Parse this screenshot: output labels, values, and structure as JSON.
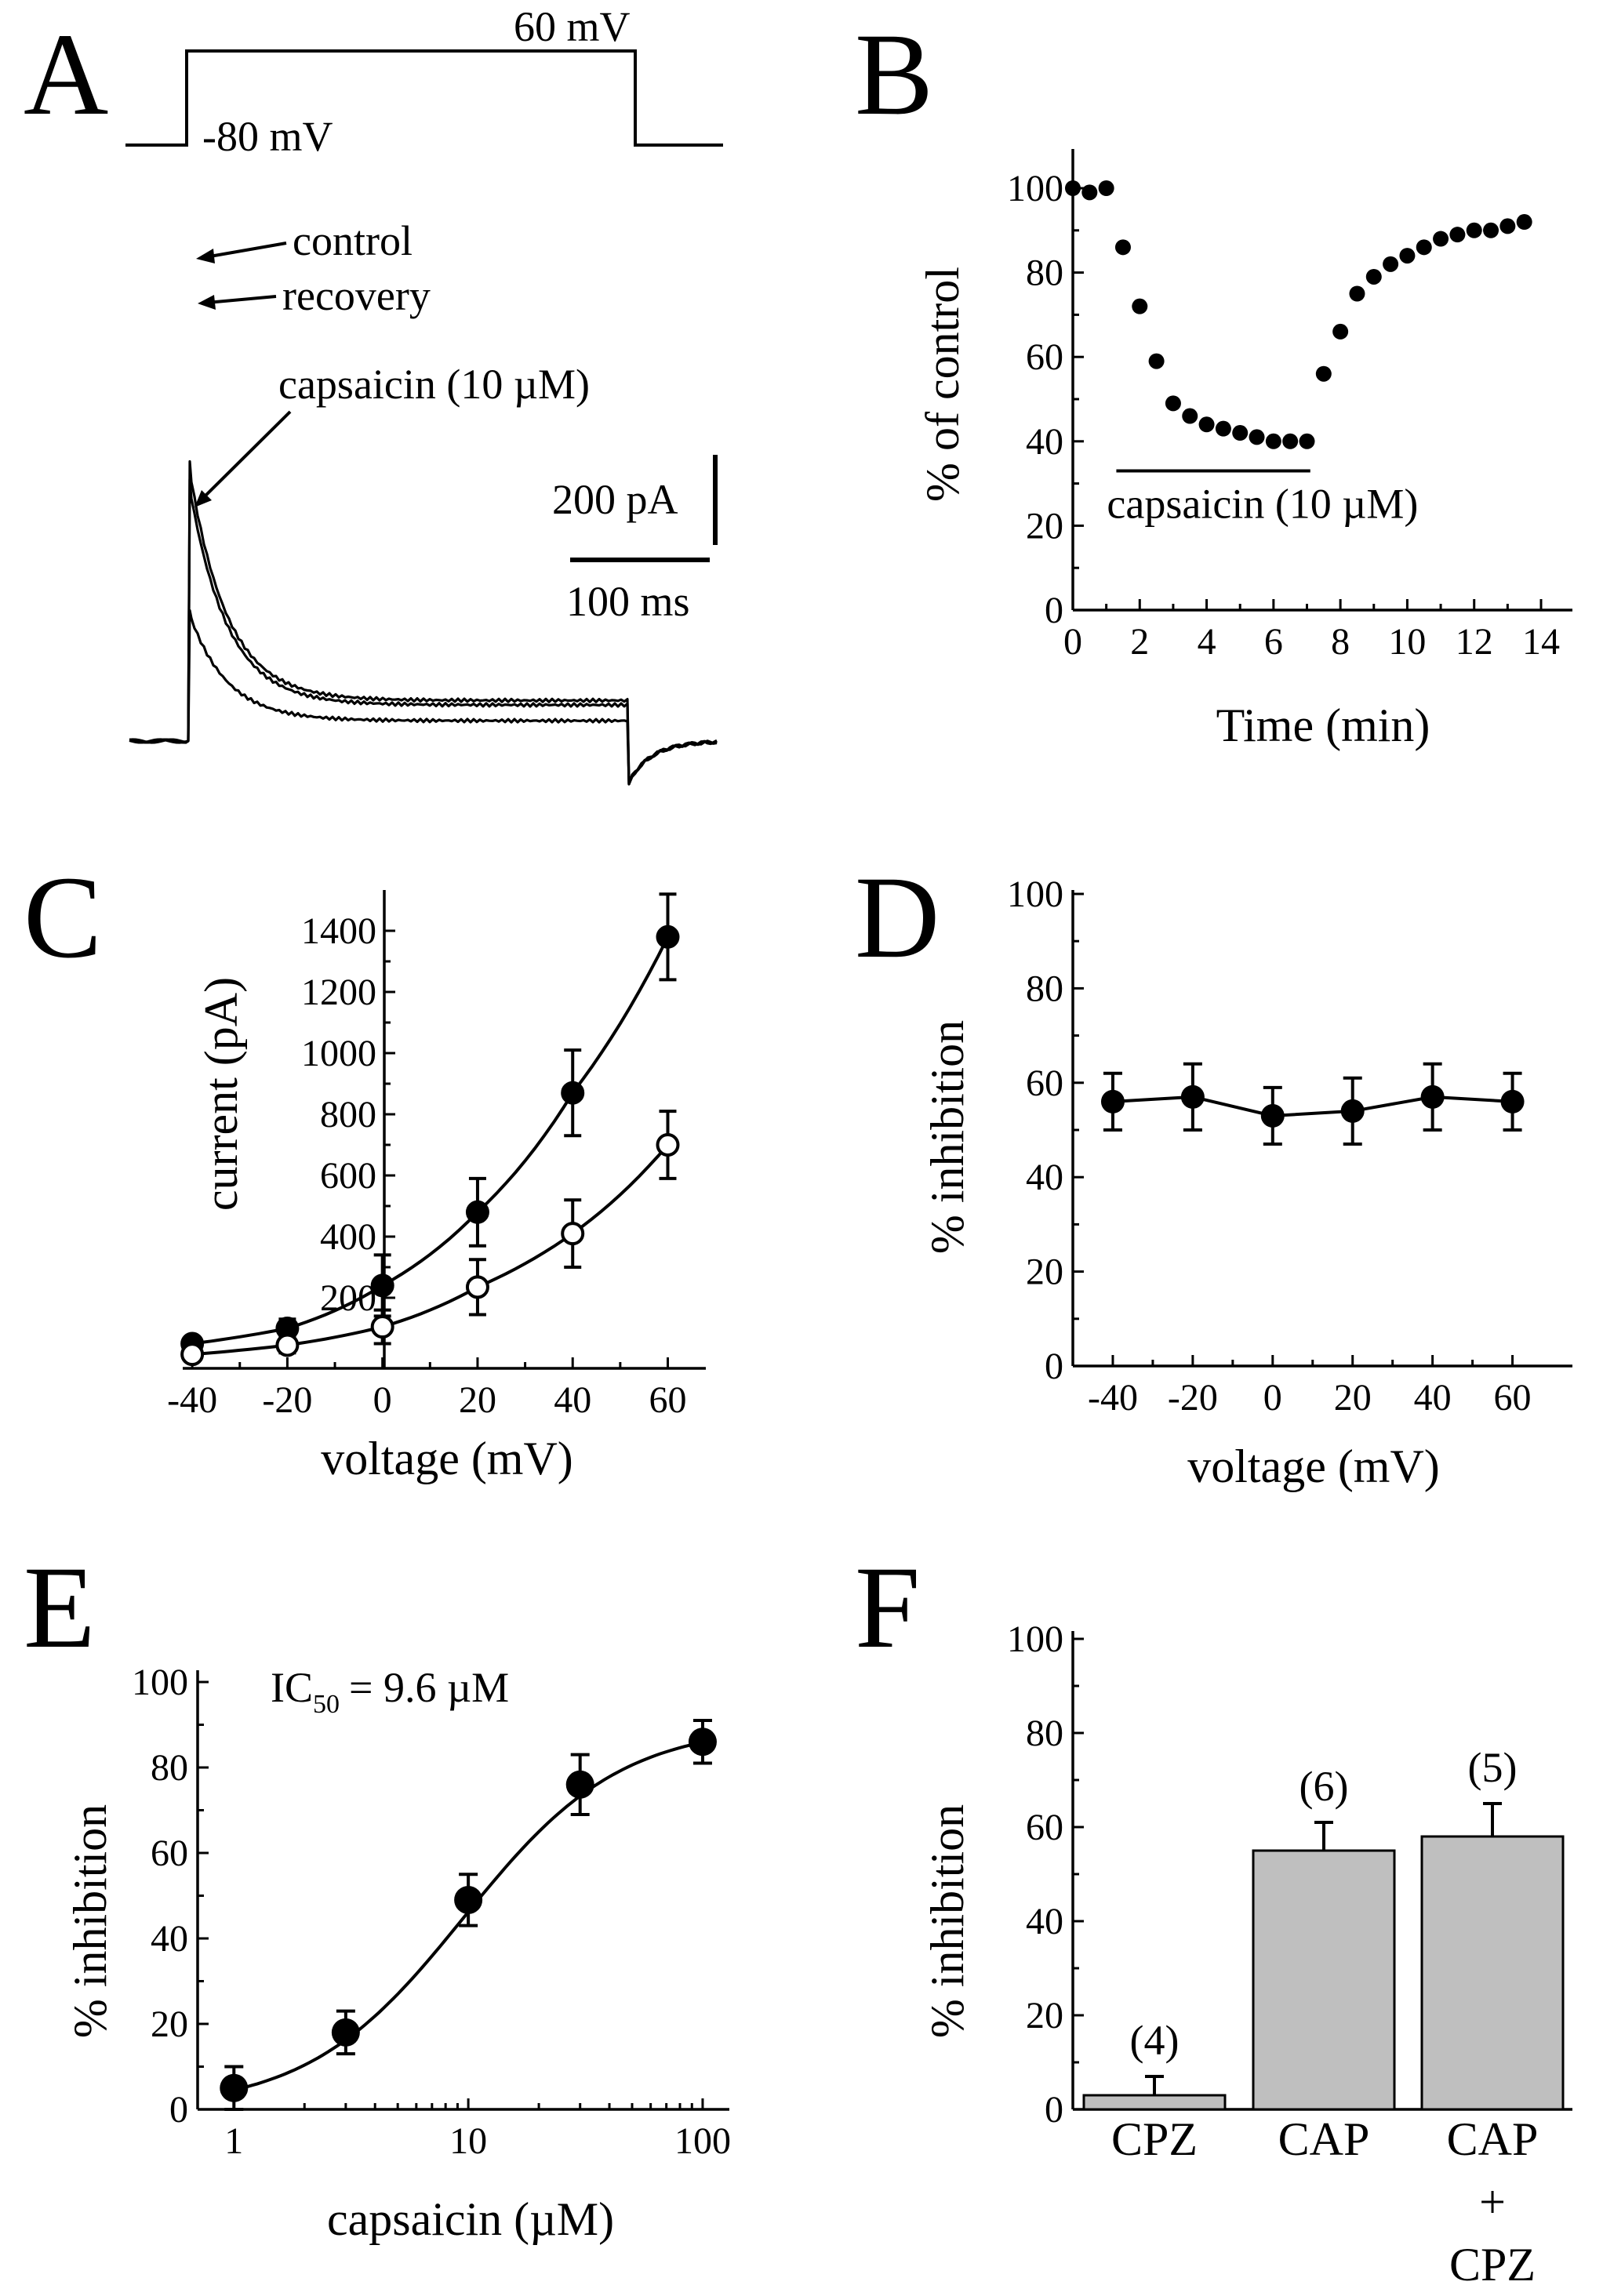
{
  "figure": {
    "bottom_band_color": "#ffffff",
    "ink_color": "#000000",
    "bar_fill": "#bfbfbf"
  },
  "chart_data": [
    {
      "panel": "A",
      "type": "line",
      "title": "",
      "protocol": {
        "holding_label": "-80 mV",
        "step_label": "60 mV"
      },
      "traces": [
        {
          "name": "control",
          "label": "control",
          "peak_pA": 620,
          "steady_pA": 90
        },
        {
          "name": "recovery",
          "label": "recovery",
          "peak_pA": 580,
          "steady_pA": 80
        },
        {
          "name": "capsaicin",
          "label": "capsaicin (10 µM)",
          "peak_pA": 290,
          "steady_pA": 45
        }
      ],
      "scale_bars": {
        "current_label": "200 pA",
        "time_label": "100 ms"
      }
    },
    {
      "panel": "B",
      "type": "scatter",
      "xlabel": "Time (min)",
      "ylabel": "% of control",
      "xlim": [
        0,
        14
      ],
      "ylim": [
        0,
        100
      ],
      "xticks": [
        "0",
        "2",
        "4",
        "6",
        "8",
        "10",
        "12",
        "14"
      ],
      "yticks": [
        "0",
        "20",
        "40",
        "60",
        "80",
        "100"
      ],
      "series": [
        {
          "name": "current",
          "x": [
            0,
            0.5,
            1.0,
            1.5,
            2.0,
            2.5,
            3.0,
            3.5,
            4.0,
            4.5,
            5.0,
            5.5,
            6.0,
            6.5,
            7.0,
            7.5,
            8.0,
            8.5,
            9.0,
            9.5,
            10.0,
            10.5,
            11.0,
            11.5,
            12.0,
            12.5,
            13.0,
            13.5
          ],
          "y": [
            100,
            99,
            100,
            86,
            72,
            59,
            49,
            46,
            44,
            43,
            42,
            41,
            40,
            40,
            40,
            56,
            66,
            75,
            79,
            82,
            84,
            86,
            88,
            89,
            90,
            90,
            91,
            92
          ]
        }
      ],
      "annotation": {
        "label": "capsaicin (10 µM)",
        "x_start": 1.3,
        "x_end": 7.1,
        "y": 33
      }
    },
    {
      "panel": "C",
      "type": "line",
      "xlabel": "voltage (mV)",
      "ylabel": "current (pA)",
      "xlim": [
        -42,
        68
      ],
      "ylim": [
        -10,
        1500
      ],
      "xticks": [
        "-40",
        "-20",
        "0",
        "20",
        "40",
        "60"
      ],
      "yticks": [
        "200",
        "400",
        "600",
        "800",
        "1000",
        "1200",
        "1400"
      ],
      "series": [
        {
          "name": "control",
          "marker": "filled",
          "x": [
            -40,
            -20,
            0,
            20,
            40,
            60
          ],
          "values": [
            50,
            100,
            240,
            480,
            870,
            1380
          ],
          "err": [
            20,
            30,
            100,
            110,
            140,
            140
          ]
        },
        {
          "name": "capsaicin",
          "marker": "open",
          "x": [
            -40,
            -20,
            0,
            20,
            40,
            60
          ],
          "values": [
            15,
            45,
            105,
            235,
            410,
            700
          ],
          "err": [
            15,
            25,
            55,
            90,
            110,
            110
          ]
        }
      ]
    },
    {
      "panel": "D",
      "type": "line",
      "xlabel": "voltage (mV)",
      "ylabel": "% inhibition",
      "xlim": [
        -50,
        75
      ],
      "ylim": [
        0,
        100
      ],
      "xticks": [
        "-40",
        "-20",
        "0",
        "20",
        "40",
        "60"
      ],
      "yticks": [
        "0",
        "20",
        "40",
        "60",
        "80",
        "100"
      ],
      "series": [
        {
          "name": "inhibition",
          "x": [
            -40,
            -20,
            0,
            20,
            40,
            60
          ],
          "values": [
            56,
            57,
            53,
            54,
            57,
            56
          ],
          "err": [
            6,
            7,
            6,
            7,
            7,
            6
          ]
        }
      ]
    },
    {
      "panel": "E",
      "type": "scatter",
      "xlabel": "capsaicin (µM)",
      "ylabel": "% inhibition",
      "xscale": "log",
      "xlim": [
        0.7,
        130
      ],
      "ylim": [
        0,
        110
      ],
      "xticks": [
        "1",
        "10",
        "100"
      ],
      "yticks": [
        "0",
        "20",
        "40",
        "60",
        "80",
        "100"
      ],
      "ic50_prefix": "IC",
      "ic50_sub": "50",
      "ic50_value": "=  9.6 µM",
      "ic50": 9.6,
      "series": [
        {
          "name": "inhibition",
          "x": [
            1,
            3,
            10,
            30,
            100
          ],
          "values": [
            5,
            18,
            49,
            76,
            86
          ],
          "err": [
            5,
            5,
            6,
            7,
            5
          ]
        }
      ],
      "fit": {
        "ic50": 9.6,
        "hill": 1.3,
        "max": 90
      }
    },
    {
      "panel": "F",
      "type": "bar",
      "xlabel": "",
      "ylabel": "% inhibition",
      "ylim": [
        0,
        100
      ],
      "yticks": [
        "0",
        "20",
        "40",
        "60",
        "80",
        "100"
      ],
      "categories": [
        "CPZ",
        "CAP",
        "CAP + CPZ"
      ],
      "category_lines": [
        [
          "CPZ"
        ],
        [
          "CAP"
        ],
        [
          "CAP",
          "+",
          "CPZ"
        ]
      ],
      "values": [
        3,
        55,
        58
      ],
      "err": [
        4,
        6,
        7
      ],
      "n_labels": [
        "(4)",
        "(6)",
        "(5)"
      ]
    }
  ]
}
